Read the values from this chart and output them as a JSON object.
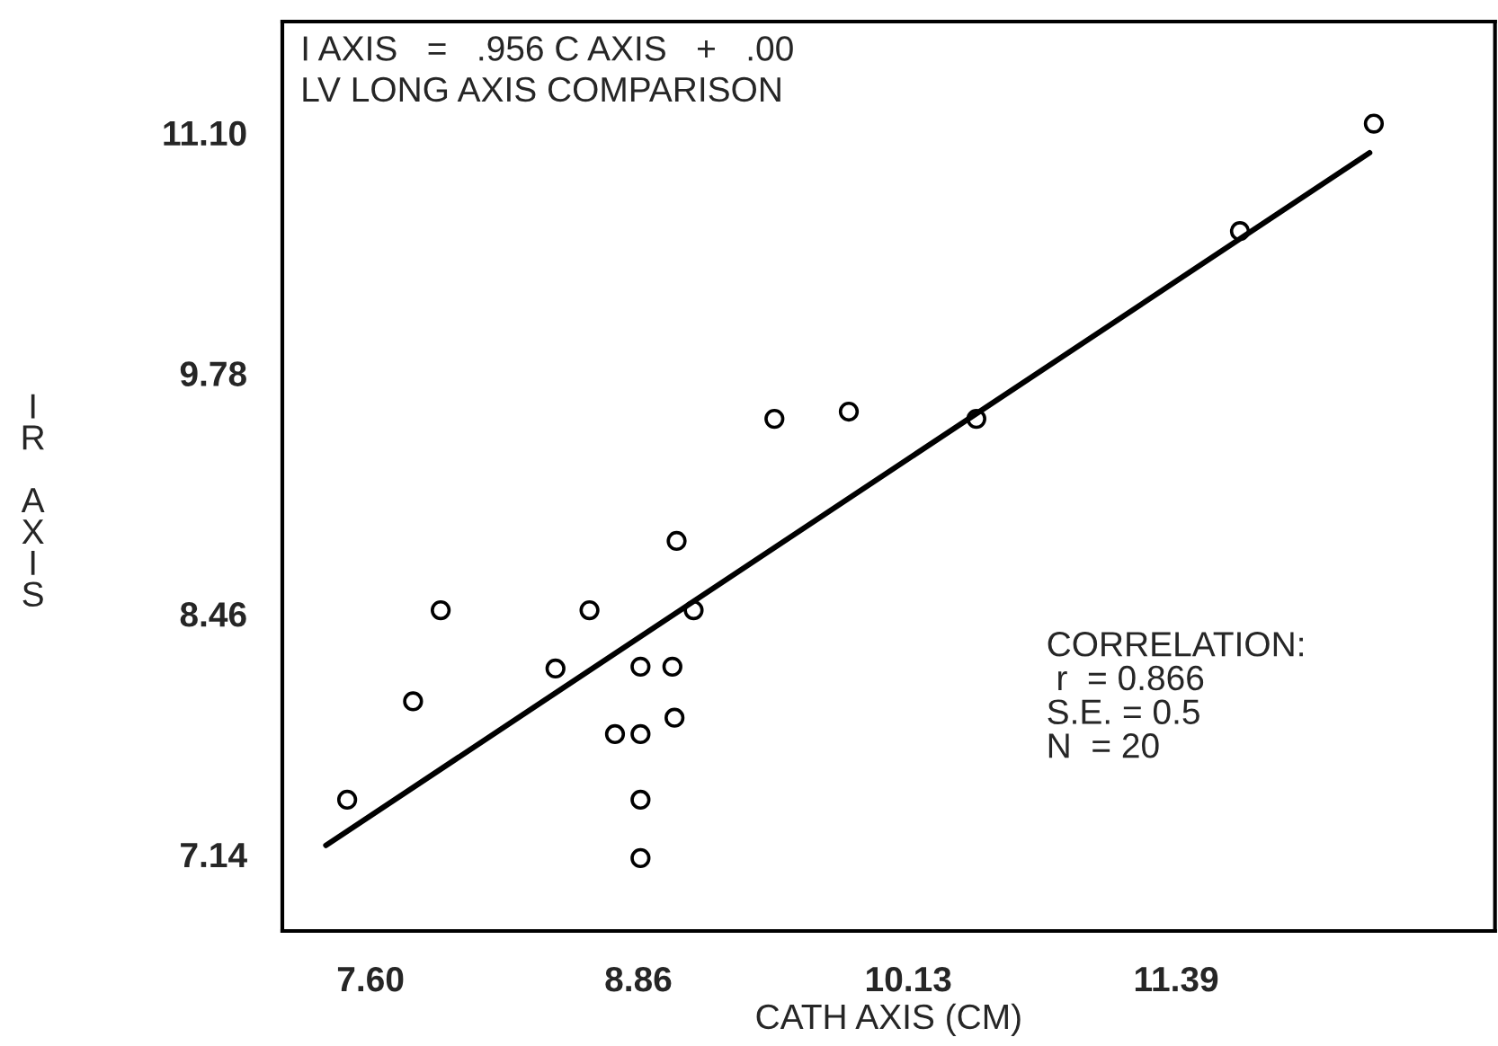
{
  "chart_data": {
    "type": "scatter",
    "xlabel": "CATH AXIS (CM)",
    "ylabel": "IR AXIS",
    "series": [
      {
        "color": "#000000",
        "marker": "circle",
        "x": [
          7.49,
          7.8,
          7.93,
          8.47,
          8.63,
          8.75,
          8.87,
          8.87,
          8.87,
          8.87,
          9.02,
          9.03,
          9.04,
          9.12,
          9.5,
          9.85,
          10.45,
          11.69,
          12.32
        ],
        "values": [
          7.44,
          7.98,
          8.48,
          8.16,
          8.48,
          7.8,
          7.8,
          8.17,
          7.44,
          7.12,
          8.17,
          7.89,
          8.86,
          8.48,
          9.53,
          9.57,
          9.53,
          10.56,
          11.15
        ]
      },
      {
        "type": "line",
        "color": "#000000",
        "marker": "none",
        "x": [
          7.39,
          12.3
        ],
        "values": [
          7.19,
          10.99
        ]
      }
    ],
    "xlim": [
      7.185,
      12.89
    ],
    "ylim": [
      6.72,
      11.71
    ],
    "xticks": [
      {
        "value": 7.6,
        "label": "7.60"
      },
      {
        "value": 8.86,
        "label": "8.86"
      },
      10.13,
      11.39
    ],
    "yticks": [
      {
        "value": 7.14,
        "label": "7.14"
      },
      8.46,
      9.78,
      {
        "value": 11.1,
        "label": "11.10"
      }
    ],
    "grid": false,
    "legend": false,
    "annotations": [
      "I AXIS   =   .956 C AXIS   +   .00",
      "LV LONG AXIS COMPARISON",
      "CORRELATION:\n r  = 0.866\nS.E. = 0.5\nN  = 20"
    ]
  }
}
